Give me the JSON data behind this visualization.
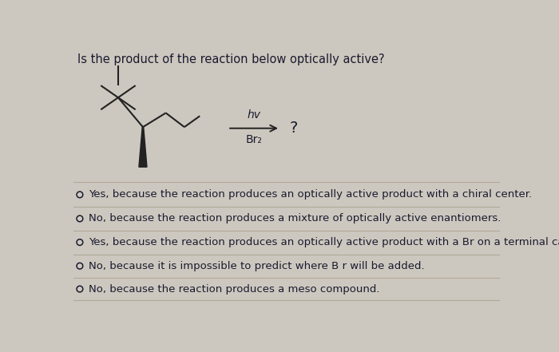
{
  "title": "Is the product of the reaction below optically active?",
  "background_color": "#cdc8bf",
  "answer_options": [
    "Yes, because the reaction produces an optically active product with a chiral center.",
    "No, because the reaction produces a mixture of optically active enantiomers.",
    "Yes, because the reaction produces an optically active product with a Br on a terminal carbon.",
    "No, because it is impossible to predict where B r will be added.",
    "No, because the reaction produces a meso compound."
  ],
  "reagent_top": "hv",
  "reagent_bottom": "Br₂",
  "product_label": "?",
  "text_color": "#1a1a2e",
  "line_color": "#222222",
  "divider_color": "#b0a898",
  "font_size_title": 10.5,
  "font_size_answers": 9.5,
  "font_size_reagents": 10,
  "circle_color": "#1a1a2e"
}
